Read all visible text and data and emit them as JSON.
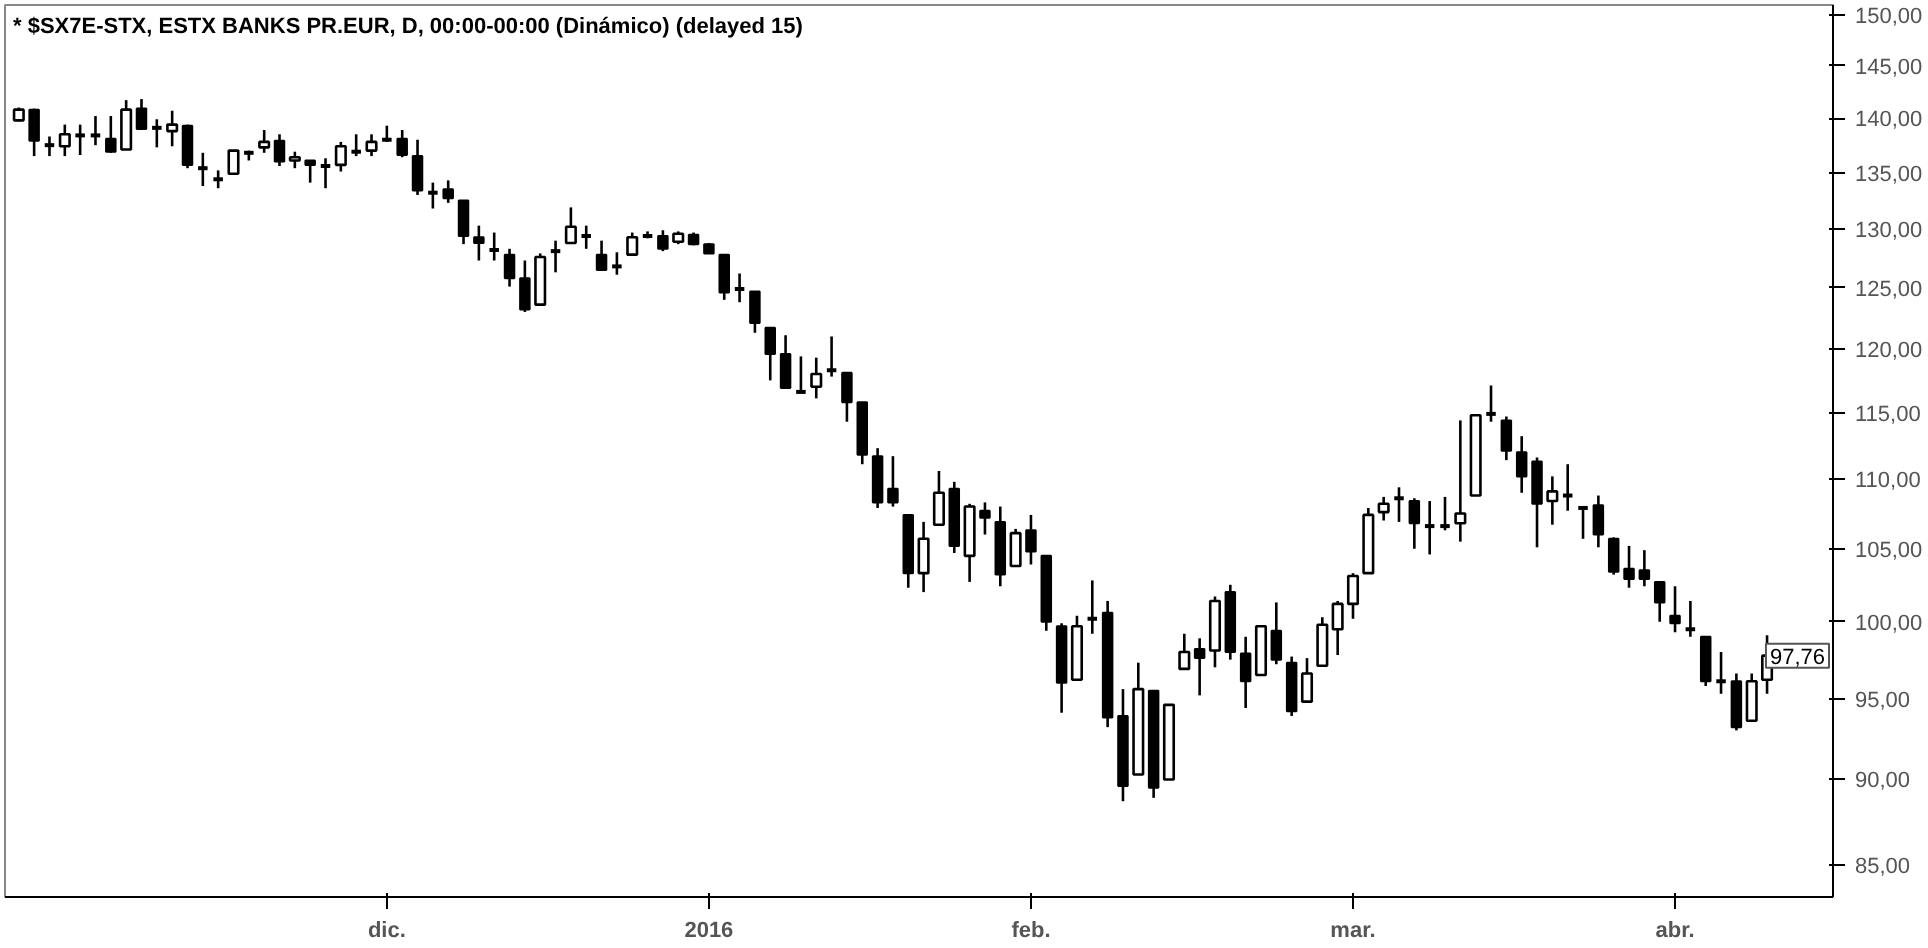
{
  "chart_data": {
    "type": "candlestick",
    "title": "* $SX7E-STX, ESTX BANKS PR.EUR, D, 00:00-00:00 (Dinámico) (delayed 15)",
    "categories": [
      null,
      null,
      null,
      null,
      null,
      null,
      null,
      null,
      null,
      null,
      null,
      null,
      null,
      null,
      null,
      null,
      null,
      null,
      null,
      null,
      null,
      null,
      null,
      null,
      "dic.",
      null,
      null,
      null,
      null,
      null,
      null,
      null,
      null,
      null,
      null,
      null,
      null,
      null,
      null,
      null,
      null,
      null,
      null,
      null,
      null,
      "2016",
      null,
      null,
      null,
      null,
      null,
      null,
      null,
      null,
      null,
      null,
      null,
      null,
      null,
      null,
      null,
      null,
      null,
      null,
      null,
      null,
      "feb.",
      null,
      null,
      null,
      null,
      null,
      null,
      null,
      null,
      null,
      null,
      null,
      null,
      null,
      null,
      null,
      null,
      null,
      null,
      null,
      null,
      "mar.",
      null,
      null,
      null,
      null,
      null,
      null,
      null,
      null,
      null,
      null,
      null,
      null,
      null,
      null,
      null,
      null,
      null,
      null,
      null,
      null,
      "abr.",
      null,
      null,
      null,
      null,
      null,
      null
    ],
    "ohlc": [
      [
        139.8,
        141.0,
        139.7,
        140.8
      ],
      [
        140.8,
        140.9,
        136.5,
        137.9
      ],
      [
        137.5,
        138.3,
        136.5,
        137.5
      ],
      [
        137.4,
        139.4,
        136.5,
        138.5
      ],
      [
        138.4,
        139.4,
        136.6,
        138.4
      ],
      [
        138.4,
        140.2,
        137.5,
        138.4
      ],
      [
        138.1,
        140.2,
        136.8,
        136.9
      ],
      [
        137.1,
        141.7,
        137.1,
        140.8
      ],
      [
        140.9,
        141.8,
        139.0,
        139.0
      ],
      [
        139.1,
        139.9,
        137.3,
        139.1
      ],
      [
        138.8,
        140.7,
        137.4,
        139.4
      ],
      [
        139.3,
        139.4,
        135.4,
        135.7
      ],
      [
        135.4,
        136.8,
        133.8,
        135.4
      ],
      [
        134.4,
        135.2,
        133.6,
        134.4
      ],
      [
        134.9,
        137.0,
        134.9,
        137.0
      ],
      [
        136.8,
        137.0,
        136.1,
        136.8
      ],
      [
        137.3,
        138.9,
        136.8,
        137.8
      ],
      [
        137.9,
        138.5,
        135.6,
        136.0
      ],
      [
        136.1,
        136.9,
        135.4,
        136.4
      ],
      [
        136.1,
        136.1,
        134.1,
        135.7
      ],
      [
        135.6,
        136.3,
        133.6,
        135.6
      ],
      [
        135.7,
        137.8,
        135.1,
        137.4
      ],
      [
        136.9,
        138.5,
        136.5,
        136.9
      ],
      [
        137.0,
        138.5,
        136.5,
        137.8
      ],
      [
        138.0,
        139.3,
        137.8,
        138.0
      ],
      [
        138.1,
        138.9,
        136.4,
        136.6
      ],
      [
        136.5,
        138.0,
        133.0,
        133.4
      ],
      [
        133.2,
        134.1,
        131.8,
        133.2
      ],
      [
        133.5,
        134.3,
        132.3,
        132.7
      ],
      [
        132.5,
        132.5,
        128.7,
        129.4
      ],
      [
        129.3,
        130.3,
        127.3,
        128.8
      ],
      [
        128.2,
        129.7,
        127.3,
        128.2
      ],
      [
        127.8,
        128.3,
        125.1,
        125.8
      ],
      [
        125.8,
        127.3,
        123.0,
        123.2
      ],
      [
        123.6,
        127.9,
        123.6,
        127.6
      ],
      [
        128.1,
        129.0,
        126.3,
        128.1
      ],
      [
        128.8,
        131.9,
        128.8,
        130.2
      ],
      [
        129.4,
        130.3,
        128.3,
        129.4
      ],
      [
        127.8,
        129.0,
        126.5,
        126.5
      ],
      [
        126.8,
        128.0,
        126.1,
        126.8
      ],
      [
        127.8,
        129.7,
        127.8,
        129.3
      ],
      [
        129.4,
        129.8,
        129.2,
        129.4
      ],
      [
        129.4,
        129.9,
        128.1,
        128.3
      ],
      [
        128.9,
        129.8,
        128.7,
        129.6
      ],
      [
        129.5,
        129.7,
        128.6,
        128.7
      ],
      [
        128.7,
        128.8,
        127.9,
        127.9
      ],
      [
        127.8,
        127.8,
        124.0,
        124.6
      ],
      [
        124.9,
        126.2,
        123.8,
        124.9
      ],
      [
        124.7,
        124.7,
        121.3,
        122.1
      ],
      [
        121.7,
        121.7,
        117.5,
        119.6
      ],
      [
        119.6,
        121.1,
        116.9,
        116.9
      ],
      [
        116.6,
        119.4,
        116.5,
        116.6
      ],
      [
        117.0,
        119.3,
        116.1,
        118.0
      ],
      [
        118.3,
        121.0,
        117.8,
        118.3
      ],
      [
        118.1,
        118.1,
        114.3,
        115.8
      ],
      [
        115.8,
        115.8,
        111.1,
        111.8
      ],
      [
        111.7,
        112.3,
        107.9,
        108.3
      ],
      [
        109.3,
        111.7,
        108.0,
        108.3
      ],
      [
        107.4,
        107.4,
        102.3,
        103.3
      ],
      [
        103.3,
        106.9,
        102.0,
        105.7
      ],
      [
        106.7,
        110.6,
        106.7,
        109.0
      ],
      [
        109.3,
        109.8,
        104.7,
        105.2
      ],
      [
        104.5,
        108.2,
        102.7,
        108.0
      ],
      [
        107.7,
        108.3,
        106.0,
        107.2
      ],
      [
        106.9,
        108.0,
        102.4,
        103.2
      ],
      [
        103.8,
        106.4,
        103.8,
        106.1
      ],
      [
        106.3,
        107.4,
        103.9,
        104.8
      ],
      [
        104.5,
        104.5,
        99.4,
        100.0
      ],
      [
        99.7,
        99.9,
        94.1,
        96.0
      ],
      [
        96.2,
        100.4,
        96.2,
        99.7
      ],
      [
        100.2,
        102.8,
        99.2,
        100.2
      ],
      [
        100.6,
        101.4,
        93.2,
        93.8
      ],
      [
        93.9,
        95.6,
        88.7,
        89.6
      ],
      [
        90.3,
        97.3,
        90.3,
        95.6
      ],
      [
        95.5,
        95.5,
        88.9,
        89.5
      ],
      [
        90.0,
        94.6,
        90.0,
        94.6
      ],
      [
        96.9,
        99.2,
        96.9,
        98.0
      ],
      [
        98.2,
        98.9,
        95.2,
        97.6
      ],
      [
        98.1,
        101.7,
        97.0,
        101.4
      ],
      [
        102.0,
        102.5,
        97.5,
        98.0
      ],
      [
        97.9,
        99.0,
        94.4,
        96.1
      ],
      [
        96.5,
        99.7,
        96.5,
        99.7
      ],
      [
        99.4,
        101.3,
        97.2,
        97.5
      ],
      [
        97.3,
        97.7,
        93.9,
        94.2
      ],
      [
        94.8,
        97.6,
        94.8,
        96.6
      ],
      [
        97.1,
        100.3,
        97.1,
        99.8
      ],
      [
        99.5,
        101.4,
        97.8,
        101.2
      ],
      [
        101.2,
        103.3,
        100.2,
        103.1
      ],
      [
        103.3,
        107.9,
        103.3,
        107.4
      ],
      [
        107.6,
        108.7,
        107.0,
        108.2
      ],
      [
        108.6,
        109.4,
        106.9,
        108.6
      ],
      [
        108.4,
        108.6,
        105.0,
        106.8
      ],
      [
        106.6,
        108.4,
        104.6,
        106.6
      ],
      [
        106.6,
        108.7,
        106.3,
        106.6
      ],
      [
        106.8,
        114.4,
        105.5,
        107.5
      ],
      [
        108.8,
        114.8,
        108.8,
        114.8
      ],
      [
        114.9,
        117.1,
        114.3,
        114.9
      ],
      [
        114.4,
        114.7,
        111.4,
        112.1
      ],
      [
        112.0,
        113.2,
        109.0,
        110.2
      ],
      [
        111.3,
        111.6,
        105.1,
        108.2
      ],
      [
        108.4,
        110.2,
        106.7,
        109.1
      ],
      [
        108.8,
        111.1,
        107.7,
        108.8
      ],
      [
        107.9,
        108.0,
        105.7,
        107.9
      ],
      [
        108.1,
        108.8,
        105.1,
        106.0
      ],
      [
        105.7,
        105.8,
        103.2,
        103.4
      ],
      [
        103.6,
        105.2,
        102.3,
        102.9
      ],
      [
        103.5,
        104.9,
        102.4,
        102.9
      ],
      [
        102.7,
        102.7,
        100.0,
        101.3
      ],
      [
        100.4,
        102.4,
        99.3,
        99.9
      ],
      [
        99.5,
        101.4,
        99.0,
        99.5
      ],
      [
        99.0,
        99.0,
        95.8,
        96.1
      ],
      [
        96.1,
        98.0,
        95.3,
        96.1
      ],
      [
        96.1,
        96.6,
        93.0,
        93.2
      ],
      [
        93.6,
        96.6,
        93.6,
        96.1
      ],
      [
        96.2,
        99.1,
        95.3,
        97.76
      ]
    ],
    "log": true,
    "ylim": [
      83.2,
      151
    ],
    "yticks": [
      {
        "value": 85,
        "label": "85,00"
      },
      {
        "value": 90,
        "label": "90,00"
      },
      {
        "value": 95,
        "label": "95,00"
      },
      {
        "value": 100,
        "label": "100,00"
      },
      {
        "value": 105,
        "label": "105,00"
      },
      {
        "value": 110,
        "label": "110,00"
      },
      {
        "value": 115,
        "label": "115,00"
      },
      {
        "value": 120,
        "label": "120,00"
      },
      {
        "value": 125,
        "label": "125,00"
      },
      {
        "value": 130,
        "label": "130,00"
      },
      {
        "value": 135,
        "label": "135,00"
      },
      {
        "value": 140,
        "label": "140,00"
      },
      {
        "value": 145,
        "label": "145,00"
      },
      {
        "value": 150,
        "label": "150,00"
      }
    ],
    "annotations": [
      "97,76"
    ]
  }
}
